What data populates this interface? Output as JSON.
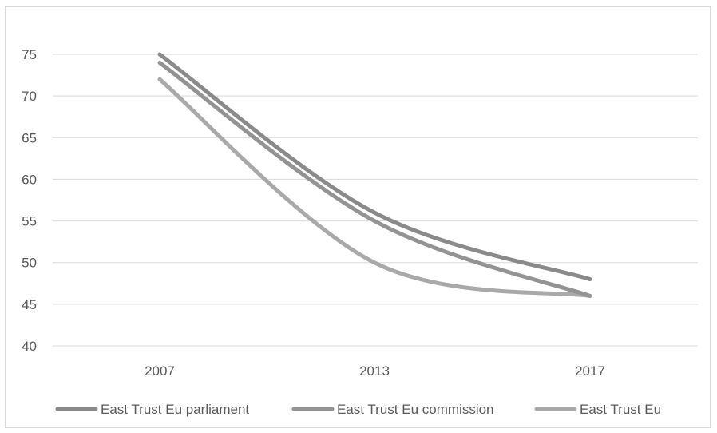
{
  "chart_data": {
    "type": "line",
    "categories": [
      "2007",
      "2013",
      "2017"
    ],
    "ylim": [
      40,
      75
    ],
    "yticks": [
      "40",
      "45",
      "50",
      "55",
      "60",
      "65",
      "70",
      "75"
    ],
    "grid": true,
    "legend_position": "bottom",
    "series": [
      {
        "name": "East Trust Eu parliament",
        "values": [
          75,
          56,
          48
        ],
        "color": "#8a8a8a"
      },
      {
        "name": "East Trust Eu commission",
        "values": [
          74,
          55,
          46
        ],
        "color": "#939393"
      },
      {
        "name": "East Trust Eu",
        "values": [
          72,
          50,
          46
        ],
        "color": "#a9a9a9"
      }
    ]
  }
}
